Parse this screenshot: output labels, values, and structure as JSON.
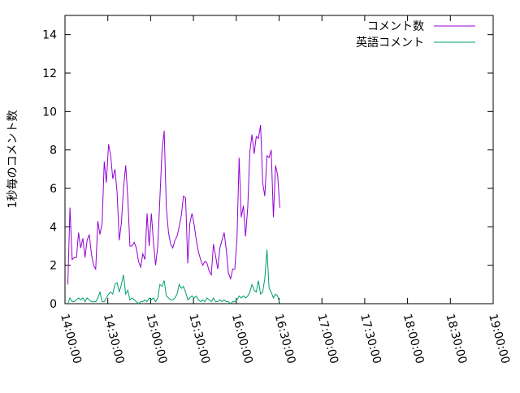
{
  "chart_data": {
    "type": "line",
    "ylabel": "1秒毎のコメント数",
    "xlabel": "",
    "ylim": [
      0,
      15
    ],
    "xlim": [
      "14:00:00",
      "19:00:00"
    ],
    "y_ticks": [
      "0",
      "2",
      "4",
      "6",
      "8",
      "10",
      "12",
      "14"
    ],
    "x_ticks": [
      "14:00:00",
      "14:30:00",
      "15:00:00",
      "15:30:00",
      "16:00:00",
      "16:30:00",
      "17:00:00",
      "17:30:00",
      "18:00:00",
      "18:30:00",
      "19:00:00"
    ],
    "legend_position": "top-right",
    "grid": false,
    "series": [
      {
        "name": "コメント数",
        "color": "#9400d3",
        "points": [
          [
            "14:02:00",
            1.0
          ],
          [
            "14:03:30",
            5.0
          ],
          [
            "14:05:00",
            2.3
          ],
          [
            "14:06:30",
            2.4
          ],
          [
            "14:08:00",
            2.4
          ],
          [
            "14:09:30",
            3.7
          ],
          [
            "14:11:00",
            2.9
          ],
          [
            "14:12:30",
            3.4
          ],
          [
            "14:14:00",
            2.4
          ],
          [
            "14:15:30",
            3.3
          ],
          [
            "14:17:00",
            3.6
          ],
          [
            "14:18:30",
            2.6
          ],
          [
            "14:20:00",
            2.0
          ],
          [
            "14:21:30",
            1.8
          ],
          [
            "14:23:00",
            4.3
          ],
          [
            "14:24:30",
            3.6
          ],
          [
            "14:26:00",
            4.2
          ],
          [
            "14:27:30",
            7.4
          ],
          [
            "14:29:00",
            6.3
          ],
          [
            "14:30:30",
            8.3
          ],
          [
            "14:32:00",
            7.7
          ],
          [
            "14:33:30",
            6.5
          ],
          [
            "14:35:00",
            7.0
          ],
          [
            "14:36:30",
            5.8
          ],
          [
            "14:38:00",
            3.3
          ],
          [
            "14:39:30",
            4.2
          ],
          [
            "14:41:00",
            6.0
          ],
          [
            "14:42:30",
            7.2
          ],
          [
            "14:44:00",
            5.5
          ],
          [
            "14:45:30",
            3.0
          ],
          [
            "14:47:00",
            3.0
          ],
          [
            "14:48:30",
            3.2
          ],
          [
            "14:50:00",
            2.9
          ],
          [
            "14:51:30",
            2.2
          ],
          [
            "14:53:00",
            1.9
          ],
          [
            "14:54:30",
            2.6
          ],
          [
            "14:56:00",
            2.3
          ],
          [
            "14:57:30",
            4.7
          ],
          [
            "14:59:00",
            3.0
          ],
          [
            "15:00:30",
            4.7
          ],
          [
            "15:02:00",
            3.2
          ],
          [
            "15:03:30",
            2.0
          ],
          [
            "15:05:00",
            3.0
          ],
          [
            "15:06:30",
            5.5
          ],
          [
            "15:08:00",
            8.0
          ],
          [
            "15:09:30",
            9.0
          ],
          [
            "15:11:00",
            5.0
          ],
          [
            "15:12:30",
            3.7
          ],
          [
            "15:14:00",
            3.1
          ],
          [
            "15:15:30",
            2.9
          ],
          [
            "15:17:00",
            3.3
          ],
          [
            "15:18:30",
            3.5
          ],
          [
            "15:20:00",
            4.0
          ],
          [
            "15:21:30",
            4.6
          ],
          [
            "15:23:00",
            5.6
          ],
          [
            "15:24:30",
            5.5
          ],
          [
            "15:26:00",
            2.1
          ],
          [
            "15:27:30",
            4.2
          ],
          [
            "15:29:00",
            4.7
          ],
          [
            "15:30:30",
            4.1
          ],
          [
            "15:32:00",
            3.3
          ],
          [
            "15:33:30",
            2.7
          ],
          [
            "15:35:00",
            2.3
          ],
          [
            "15:36:30",
            2.0
          ],
          [
            "15:38:00",
            2.2
          ],
          [
            "15:39:30",
            2.1
          ],
          [
            "15:41:00",
            1.7
          ],
          [
            "15:42:30",
            1.5
          ],
          [
            "15:44:00",
            3.1
          ],
          [
            "15:45:30",
            2.5
          ],
          [
            "15:47:00",
            1.8
          ],
          [
            "15:48:30",
            2.9
          ],
          [
            "15:50:00",
            3.3
          ],
          [
            "15:51:30",
            3.7
          ],
          [
            "15:53:00",
            2.8
          ],
          [
            "15:54:30",
            1.6
          ],
          [
            "15:56:00",
            1.3
          ],
          [
            "15:57:30",
            1.8
          ],
          [
            "15:59:00",
            1.8
          ],
          [
            "16:00:30",
            3.4
          ],
          [
            "16:02:00",
            7.6
          ],
          [
            "16:03:30",
            4.5
          ],
          [
            "16:05:00",
            5.1
          ],
          [
            "16:06:30",
            3.5
          ],
          [
            "16:08:00",
            5.0
          ],
          [
            "16:09:30",
            7.9
          ],
          [
            "16:11:00",
            8.8
          ],
          [
            "16:12:30",
            7.8
          ],
          [
            "16:14:00",
            8.7
          ],
          [
            "16:15:30",
            8.6
          ],
          [
            "16:17:00",
            9.3
          ],
          [
            "16:18:30",
            6.3
          ],
          [
            "16:20:00",
            5.6
          ],
          [
            "16:21:30",
            7.7
          ],
          [
            "16:23:00",
            7.6
          ],
          [
            "16:24:30",
            8.0
          ],
          [
            "16:26:00",
            4.5
          ],
          [
            "16:27:30",
            7.2
          ],
          [
            "16:29:00",
            6.7
          ],
          [
            "16:30:30",
            5.0
          ]
        ]
      },
      {
        "name": "英語コメント",
        "color": "#009e73",
        "points": [
          [
            "14:02:00",
            0.0
          ],
          [
            "14:03:30",
            0.3
          ],
          [
            "14:05:00",
            0.1
          ],
          [
            "14:06:30",
            0.1
          ],
          [
            "14:08:00",
            0.2
          ],
          [
            "14:09:30",
            0.3
          ],
          [
            "14:11:00",
            0.2
          ],
          [
            "14:12:30",
            0.3
          ],
          [
            "14:14:00",
            0.1
          ],
          [
            "14:15:30",
            0.3
          ],
          [
            "14:17:00",
            0.2
          ],
          [
            "14:18:30",
            0.1
          ],
          [
            "14:20:00",
            0.1
          ],
          [
            "14:21:30",
            0.1
          ],
          [
            "14:23:00",
            0.3
          ],
          [
            "14:24:30",
            0.6
          ],
          [
            "14:26:00",
            0.1
          ],
          [
            "14:27:30",
            0.1
          ],
          [
            "14:29:00",
            0.3
          ],
          [
            "14:30:30",
            0.5
          ],
          [
            "14:32:00",
            0.6
          ],
          [
            "14:33:30",
            0.5
          ],
          [
            "14:35:00",
            1.0
          ],
          [
            "14:36:30",
            1.1
          ],
          [
            "14:38:00",
            0.6
          ],
          [
            "14:39:30",
            1.0
          ],
          [
            "14:41:00",
            1.5
          ],
          [
            "14:42:30",
            0.5
          ],
          [
            "14:44:00",
            0.7
          ],
          [
            "14:45:30",
            0.2
          ],
          [
            "14:47:00",
            0.3
          ],
          [
            "14:48:30",
            0.2
          ],
          [
            "14:50:00",
            0.1
          ],
          [
            "14:51:30",
            0.0
          ],
          [
            "14:53:00",
            0.1
          ],
          [
            "14:54:30",
            0.1
          ],
          [
            "14:56:00",
            0.2
          ],
          [
            "14:57:30",
            0.1
          ],
          [
            "14:59:00",
            0.3
          ],
          [
            "15:00:30",
            0.2
          ],
          [
            "15:02:00",
            0.3
          ],
          [
            "15:03:30",
            0.1
          ],
          [
            "15:05:00",
            0.3
          ],
          [
            "15:06:30",
            1.0
          ],
          [
            "15:08:00",
            0.9
          ],
          [
            "15:09:30",
            1.2
          ],
          [
            "15:11:00",
            0.4
          ],
          [
            "15:12:30",
            0.3
          ],
          [
            "15:14:00",
            0.2
          ],
          [
            "15:15:30",
            0.2
          ],
          [
            "15:17:00",
            0.3
          ],
          [
            "15:18:30",
            0.5
          ],
          [
            "15:20:00",
            1.0
          ],
          [
            "15:21:30",
            0.8
          ],
          [
            "15:23:00",
            0.9
          ],
          [
            "15:24:30",
            0.6
          ],
          [
            "15:26:00",
            0.2
          ],
          [
            "15:27:30",
            0.3
          ],
          [
            "15:29:00",
            0.4
          ],
          [
            "15:30:30",
            0.3
          ],
          [
            "15:32:00",
            0.4
          ],
          [
            "15:33:30",
            0.2
          ],
          [
            "15:35:00",
            0.1
          ],
          [
            "15:36:30",
            0.2
          ],
          [
            "15:38:00",
            0.1
          ],
          [
            "15:39:30",
            0.3
          ],
          [
            "15:41:00",
            0.2
          ],
          [
            "15:42:30",
            0.1
          ],
          [
            "15:44:00",
            0.3
          ],
          [
            "15:45:30",
            0.1
          ],
          [
            "15:47:00",
            0.1
          ],
          [
            "15:48:30",
            0.2
          ],
          [
            "15:50:00",
            0.1
          ],
          [
            "15:51:30",
            0.2
          ],
          [
            "15:53:00",
            0.1
          ],
          [
            "15:54:30",
            0.1
          ],
          [
            "15:56:00",
            0.0
          ],
          [
            "15:57:30",
            0.1
          ],
          [
            "15:59:00",
            0.1
          ],
          [
            "16:00:30",
            0.2
          ],
          [
            "16:02:00",
            0.4
          ],
          [
            "16:03:30",
            0.3
          ],
          [
            "16:05:00",
            0.4
          ],
          [
            "16:06:30",
            0.3
          ],
          [
            "16:08:00",
            0.4
          ],
          [
            "16:09:30",
            0.6
          ],
          [
            "16:11:00",
            1.0
          ],
          [
            "16:12:30",
            0.7
          ],
          [
            "16:14:00",
            0.6
          ],
          [
            "16:15:30",
            1.2
          ],
          [
            "16:17:00",
            0.5
          ],
          [
            "16:18:30",
            0.6
          ],
          [
            "16:20:00",
            1.3
          ],
          [
            "16:21:30",
            2.8
          ],
          [
            "16:23:00",
            0.8
          ],
          [
            "16:24:30",
            0.6
          ],
          [
            "16:26:00",
            0.3
          ],
          [
            "16:27:30",
            0.5
          ],
          [
            "16:29:00",
            0.4
          ],
          [
            "16:30:30",
            0.0
          ]
        ]
      }
    ]
  }
}
